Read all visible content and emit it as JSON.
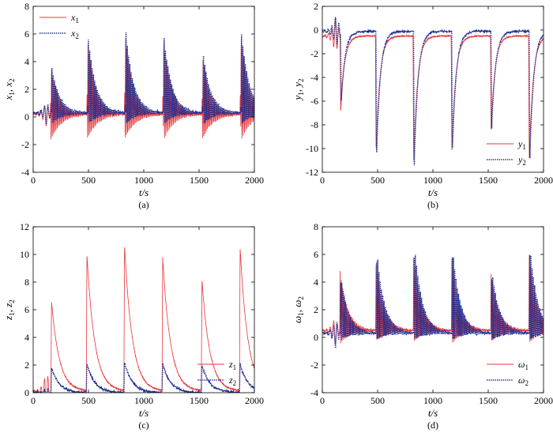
{
  "colors": {
    "series1": "#e8363a",
    "series2": "#1f2f8f",
    "axis": "#000000",
    "background": "#ffffff"
  },
  "chart_data": [
    {
      "type": "line",
      "caption": "(a)",
      "ylabel_parts": [
        [
          "x",
          "1"
        ],
        [
          "x",
          "2"
        ]
      ],
      "xlabel": "t/s",
      "xlim": [
        0,
        2000
      ],
      "ylim": [
        -4,
        8
      ],
      "xticks": [
        0,
        500,
        1000,
        1500,
        2000
      ],
      "yticks": [
        -4,
        -2,
        0,
        2,
        4,
        6,
        8
      ],
      "legend_position": "top-left",
      "series": [
        {
          "name": [
            "x",
            "1"
          ],
          "style": "solid",
          "color": "#e8363a",
          "spike_times": [
            155,
            485,
            825,
            1170,
            1525,
            1870
          ],
          "spike_peaks": [
            3.7,
            5.9,
            6.4,
            5.9,
            4.7,
            6.2
          ],
          "baseline": 0.2,
          "minimum": -2.3
        },
        {
          "name": [
            "x",
            "2"
          ],
          "style": "dotted",
          "color": "#1f2f8f",
          "spike_times": [
            160,
            490,
            830,
            1175,
            1530,
            1875
          ],
          "spike_peaks": [
            3.8,
            6.0,
            6.5,
            6.0,
            4.7,
            6.3
          ],
          "baseline": 0.3,
          "minimum": -0.8
        }
      ]
    },
    {
      "type": "line",
      "caption": "(b)",
      "ylabel_parts": [
        [
          "y",
          "1"
        ],
        [
          "y",
          "2"
        ]
      ],
      "xlabel": "t/s",
      "xlim": [
        0,
        2000
      ],
      "ylim": [
        -12,
        2
      ],
      "xticks": [
        0,
        500,
        1000,
        1500,
        2000
      ],
      "yticks": [
        -12,
        -10,
        -8,
        -6,
        -4,
        -2,
        0,
        2
      ],
      "legend_position": "bottom-right",
      "series": [
        {
          "name": [
            "y",
            "1"
          ],
          "style": "solid",
          "color": "#e8363a",
          "spike_times": [
            160,
            480,
            820,
            1165,
            1520,
            1865
          ],
          "spike_peaks": [
            -7.0,
            -10.2,
            -11.3,
            -10.2,
            -8.6,
            -11.0
          ],
          "baseline": -0.5
        },
        {
          "name": [
            "y",
            "2"
          ],
          "style": "dotted",
          "color": "#1f2f8f",
          "spike_times": [
            165,
            485,
            825,
            1170,
            1525,
            1870
          ],
          "spike_peaks": [
            -6.0,
            -10.4,
            -11.5,
            -10.3,
            -8.4,
            -11.1
          ],
          "baseline": -0.1
        }
      ]
    },
    {
      "type": "line",
      "caption": "(c)",
      "ylabel_parts": [
        [
          "z",
          "1"
        ],
        [
          "z",
          "2"
        ]
      ],
      "xlabel": "t/s",
      "xlim": [
        0,
        2000
      ],
      "ylim": [
        0,
        12
      ],
      "xticks": [
        0,
        500,
        1000,
        1500,
        2000
      ],
      "yticks": [
        0,
        2,
        4,
        6,
        8,
        10,
        12
      ],
      "legend_position": "bottom-right",
      "series": [
        {
          "name": [
            "z",
            "1"
          ],
          "style": "solid",
          "color": "#e8363a",
          "spike_times": [
            160,
            480,
            820,
            1165,
            1520,
            1865
          ],
          "spike_peaks": [
            6.6,
            10.0,
            10.7,
            9.8,
            8.2,
            10.5
          ],
          "baseline": 0.1
        },
        {
          "name": [
            "z",
            "2"
          ],
          "style": "dotted",
          "color": "#1f2f8f",
          "spike_times": [
            160,
            480,
            820,
            1165,
            1520,
            1865
          ],
          "spike_peaks": [
            1.8,
            2.1,
            2.2,
            2.1,
            2.0,
            2.1
          ],
          "baseline": 0.0
        }
      ]
    },
    {
      "type": "line",
      "caption": "(d)",
      "ylabel_parts": [
        [
          "ω",
          "1"
        ],
        [
          "ω",
          "2"
        ]
      ],
      "xlabel": "t/s",
      "xlim": [
        0,
        2000
      ],
      "ylim": [
        -4,
        8
      ],
      "xticks": [
        0,
        500,
        1000,
        1500,
        2000
      ],
      "yticks": [
        -4,
        -2,
        0,
        2,
        4,
        6,
        8
      ],
      "legend_position": "bottom-right",
      "series": [
        {
          "name": [
            "ω",
            "1"
          ],
          "style": "solid",
          "color": "#e8363a",
          "spike_times": [
            155,
            480,
            820,
            1165,
            1520,
            1865
          ],
          "spike_peaks": [
            4.8,
            5.6,
            6.1,
            5.7,
            4.8,
            6.0
          ],
          "baseline": 0.5,
          "minimum": -0.7
        },
        {
          "name": [
            "ω",
            "2"
          ],
          "style": "dotted",
          "color": "#1f2f8f",
          "spike_times": [
            160,
            485,
            825,
            1170,
            1525,
            1870
          ],
          "spike_peaks": [
            4.5,
            6.5,
            7.0,
            6.6,
            5.0,
            6.8
          ],
          "baseline": 0.3,
          "minimum": -0.3
        }
      ]
    }
  ]
}
